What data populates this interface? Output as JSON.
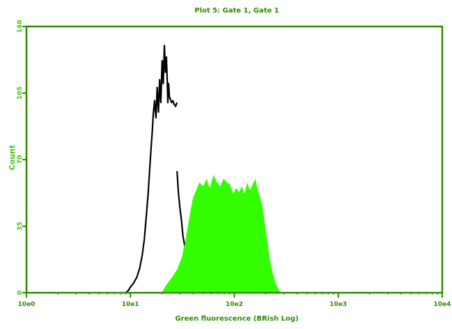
{
  "chart_data": {
    "type": "area",
    "title": "Plot 5: Gate 1, Gate 1",
    "xlabel": "Green fluorescence (BRish Log)",
    "ylabel": "Count",
    "x_scale": "log",
    "xlim": [
      1,
      10000
    ],
    "ylim": [
      0,
      140
    ],
    "x_ticks": [
      {
        "value": 1,
        "label": "10e0"
      },
      {
        "value": 10,
        "label": "10e1"
      },
      {
        "value": 100,
        "label": "10e2"
      },
      {
        "value": 1000,
        "label": "10e3"
      },
      {
        "value": 10000,
        "label": "10e4"
      }
    ],
    "y_ticks": [
      {
        "value": 0,
        "label": "0"
      },
      {
        "value": 35,
        "label": "35"
      },
      {
        "value": 70,
        "label": "70"
      },
      {
        "value": 105,
        "label": "105"
      },
      {
        "value": 140,
        "label": "140"
      }
    ],
    "grid": false,
    "colors": {
      "axes": "#2e8b00",
      "label_text": "#33cc00",
      "title_text": "#2e8b00",
      "control_line": "#000000",
      "sample_fill": "#33ff00"
    },
    "series": [
      {
        "style": "line",
        "color": "#000000",
        "x": [
          9,
          9.5,
          10,
          10.7,
          11.5,
          12.3,
          13,
          13.6,
          14.2,
          14.8,
          15.3,
          15.8,
          16.2,
          16.6,
          17.1,
          17.6,
          18.1,
          18.6,
          19.1,
          19.6,
          20.2,
          20.7,
          21.2,
          21.7,
          22.2,
          22.6,
          22.9,
          23.3,
          23.7,
          24.2,
          24.9,
          25.6,
          26.4,
          27.2,
          28.1
        ],
        "y": [
          0,
          1,
          3,
          5,
          8,
          13,
          20,
          28,
          40,
          52,
          64,
          76,
          84,
          94,
          101,
          92,
          108,
          95,
          112,
          100,
          122,
          110,
          130,
          116,
          124,
          112,
          100,
          110,
          103,
          102,
          100,
          101,
          99,
          98,
          100
        ]
      },
      {
        "style": "line",
        "color": "#000000",
        "x": [
          28.1,
          29,
          30,
          31,
          32,
          33.5,
          35,
          36.5,
          38,
          40,
          42,
          44,
          46,
          48.5,
          51,
          54
        ],
        "y": [
          64,
          52,
          44,
          38,
          30,
          24,
          19,
          15,
          12,
          10,
          8,
          7,
          5,
          3,
          1,
          0
        ]
      },
      {
        "style": "filled",
        "color": "#33ff00",
        "x": [
          20,
          22,
          25,
          28,
          31,
          34,
          37,
          40,
          43,
          46,
          50,
          54,
          58,
          63,
          68,
          73,
          79,
          85,
          91,
          97,
          104,
          111,
          118,
          125,
          133,
          141,
          150,
          159,
          168,
          178,
          188,
          198,
          210,
          222,
          235,
          250,
          265,
          280
        ],
        "y": [
          0,
          4,
          8,
          12,
          18,
          28,
          40,
          50,
          54,
          58,
          56,
          60,
          55,
          62,
          58,
          56,
          60,
          58,
          57,
          52,
          55,
          53,
          56,
          52,
          58,
          54,
          57,
          60,
          54,
          50,
          44,
          35,
          25,
          16,
          10,
          5,
          2,
          0
        ]
      }
    ]
  }
}
